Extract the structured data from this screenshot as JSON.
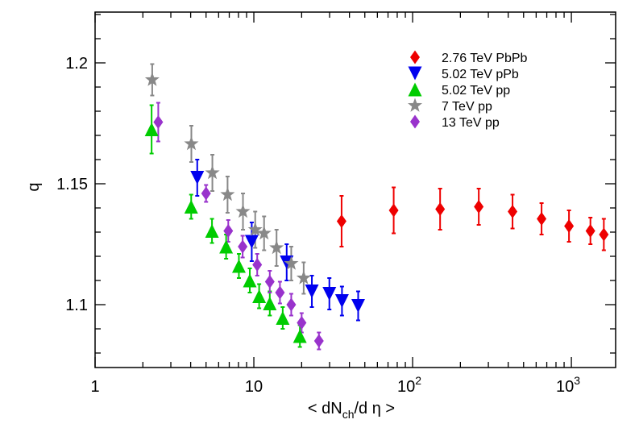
{
  "chart_data": {
    "type": "scatter",
    "title": "",
    "xlabel": "< dN_ch/d η >",
    "xlabel_parts": {
      "pre": "< dN",
      "sub": "ch",
      "post": "/d η >"
    },
    "ylabel": "q",
    "xscale": "log",
    "xlim": [
      1,
      1900
    ],
    "ylim": [
      1.074,
      1.221
    ],
    "grid": false,
    "legend_position": "top-right",
    "x_ticks": [
      {
        "value": 1,
        "label": "1"
      },
      {
        "value": 10,
        "label": "10"
      },
      {
        "value": 100,
        "label": "10",
        "exp": "2"
      },
      {
        "value": 1000,
        "label": "10",
        "exp": "3"
      }
    ],
    "y_ticks": [
      {
        "value": 1.1,
        "label": "1.1"
      },
      {
        "value": 1.15,
        "label": "1.15"
      },
      {
        "value": 1.2,
        "label": "1.2"
      }
    ],
    "series": [
      {
        "name": "2.76 TeV PbPb",
        "marker": "diamond",
        "color": "#ee0000",
        "points": [
          {
            "x": 35.7,
            "y": 1.1345,
            "err": 0.0105
          },
          {
            "x": 76,
            "y": 1.139,
            "err": 0.0095
          },
          {
            "x": 149,
            "y": 1.1395,
            "err": 0.0085
          },
          {
            "x": 261,
            "y": 1.1405,
            "err": 0.0075
          },
          {
            "x": 426,
            "y": 1.1385,
            "err": 0.007
          },
          {
            "x": 649,
            "y": 1.1355,
            "err": 0.0065
          },
          {
            "x": 966,
            "y": 1.1325,
            "err": 0.0065
          },
          {
            "x": 1318,
            "y": 1.1305,
            "err": 0.0055
          },
          {
            "x": 1601,
            "y": 1.129,
            "err": 0.0065
          }
        ]
      },
      {
        "name": "5.02 TeV pPb",
        "marker": "triangle-down",
        "color": "#0000ee",
        "points": [
          {
            "x": 4.4,
            "y": 1.1525,
            "err": 0.0075
          },
          {
            "x": 9.7,
            "y": 1.126,
            "err": 0.008
          },
          {
            "x": 16.1,
            "y": 1.1175,
            "err": 0.0075
          },
          {
            "x": 23.2,
            "y": 1.1055,
            "err": 0.0065
          },
          {
            "x": 29.9,
            "y": 1.1045,
            "err": 0.0065
          },
          {
            "x": 35.9,
            "y": 1.1015,
            "err": 0.006
          },
          {
            "x": 45.4,
            "y": 1.0995,
            "err": 0.006
          }
        ]
      },
      {
        "name": "5.02 TeV pp",
        "marker": "triangle-up",
        "color": "#00cc00",
        "points": [
          {
            "x": 2.27,
            "y": 1.1725,
            "err": 0.01
          },
          {
            "x": 4.03,
            "y": 1.1405,
            "err": 0.005
          },
          {
            "x": 5.45,
            "y": 1.1305,
            "err": 0.005
          },
          {
            "x": 6.69,
            "y": 1.124,
            "err": 0.005
          },
          {
            "x": 8.05,
            "y": 1.116,
            "err": 0.005
          },
          {
            "x": 9.43,
            "y": 1.11,
            "err": 0.005
          },
          {
            "x": 10.8,
            "y": 1.1035,
            "err": 0.005
          },
          {
            "x": 12.6,
            "y": 1.1005,
            "err": 0.005
          },
          {
            "x": 15.2,
            "y": 1.0945,
            "err": 0.0045
          },
          {
            "x": 19.5,
            "y": 1.087,
            "err": 0.0045
          }
        ]
      },
      {
        "name": "7 TeV pp",
        "marker": "star",
        "color": "#888888",
        "points": [
          {
            "x": 2.29,
            "y": 1.193,
            "err": 0.0065
          },
          {
            "x": 4.04,
            "y": 1.1665,
            "err": 0.0075
          },
          {
            "x": 5.48,
            "y": 1.1545,
            "err": 0.0075
          },
          {
            "x": 6.83,
            "y": 1.1455,
            "err": 0.0075
          },
          {
            "x": 8.54,
            "y": 1.1385,
            "err": 0.0075
          },
          {
            "x": 10.2,
            "y": 1.131,
            "err": 0.0075
          },
          {
            "x": 11.6,
            "y": 1.1295,
            "err": 0.007
          },
          {
            "x": 13.9,
            "y": 1.1235,
            "err": 0.0075
          },
          {
            "x": 17.2,
            "y": 1.117,
            "err": 0.007
          },
          {
            "x": 20.6,
            "y": 1.111,
            "err": 0.0065
          }
        ]
      },
      {
        "name": "13 TeV pp",
        "marker": "diamond",
        "color": "#9933cc",
        "points": [
          {
            "x": 2.5,
            "y": 1.1755,
            "err": 0.008
          },
          {
            "x": 5.0,
            "y": 1.146,
            "err": 0.0035
          },
          {
            "x": 6.9,
            "y": 1.1305,
            "err": 0.0045
          },
          {
            "x": 8.5,
            "y": 1.124,
            "err": 0.0045
          },
          {
            "x": 10.5,
            "y": 1.1165,
            "err": 0.0045
          },
          {
            "x": 12.6,
            "y": 1.1095,
            "err": 0.0045
          },
          {
            "x": 14.6,
            "y": 1.105,
            "err": 0.0045
          },
          {
            "x": 17.2,
            "y": 1.1,
            "err": 0.0045
          },
          {
            "x": 20.0,
            "y": 1.0925,
            "err": 0.004
          },
          {
            "x": 25.7,
            "y": 1.085,
            "err": 0.0035
          }
        ]
      }
    ]
  }
}
